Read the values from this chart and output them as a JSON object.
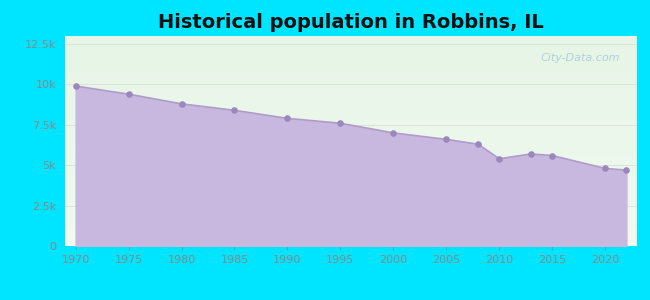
{
  "title": "Historical population in Robbins, IL",
  "years": [
    1970,
    1975,
    1980,
    1985,
    1990,
    1995,
    2000,
    2005,
    2008,
    2010,
    2013,
    2015,
    2020,
    2022
  ],
  "population": [
    9900,
    9400,
    8800,
    8400,
    7900,
    7600,
    7000,
    6600,
    6300,
    5400,
    5700,
    5600,
    4800,
    4700
  ],
  "line_color": "#b09cc8",
  "fill_color": "#c8b8e0",
  "marker_color": "#9a88bb",
  "background_outer": "#00e5ff",
  "bg_grad_top": "#e6f5e6",
  "bg_grad_bottom": "#f2faf2",
  "ylim": [
    0,
    13000
  ],
  "xlim": [
    1969,
    2023
  ],
  "title_fontsize": 14,
  "tick_label_color": "#888888",
  "grid_color": "#dddddd",
  "watermark_text": "City-Data.com",
  "watermark_color": "#aaccd8",
  "xticks": [
    1970,
    1975,
    1980,
    1985,
    1990,
    1995,
    2000,
    2005,
    2010,
    2015,
    2020
  ],
  "yticks": [
    0,
    2500,
    5000,
    7500,
    10000,
    12500
  ]
}
